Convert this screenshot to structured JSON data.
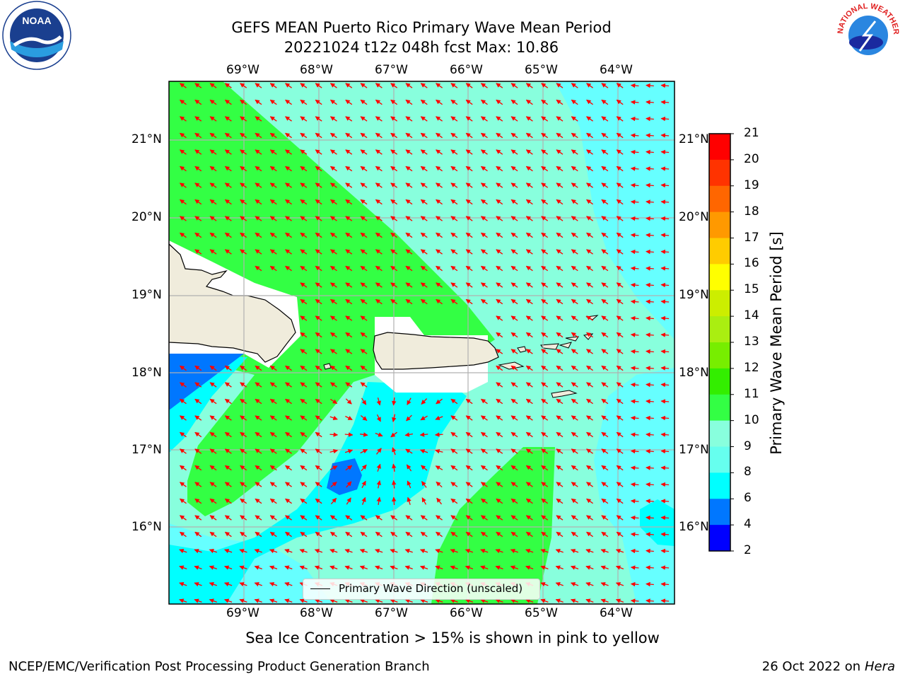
{
  "title": {
    "line1": "GEFS MEAN Puerto Rico Primary Wave Mean Period",
    "line2": "20221024 t12z 048h fcst   Max: 10.86"
  },
  "axes": {
    "lon_labels": [
      "69°W",
      "68°W",
      "67°W",
      "66°W",
      "65°W",
      "64°W"
    ],
    "lat_labels": [
      "21°N",
      "20°N",
      "19°N",
      "18°N",
      "17°N",
      "16°N"
    ]
  },
  "colorbar": {
    "label": "Primary Wave Mean Period [s]",
    "ticks": [
      "21",
      "20",
      "19",
      "18",
      "17",
      "16",
      "15",
      "14",
      "13",
      "12",
      "11",
      "10",
      "9",
      "8",
      "6",
      "4",
      "2"
    ],
    "colors": [
      "#ff0000",
      "#ff3300",
      "#ff6600",
      "#ff9900",
      "#ffcc00",
      "#ffff00",
      "#ccee00",
      "#aaee11",
      "#77ee00",
      "#33ee00",
      "#33ff44",
      "#88ffdd",
      "#66ffee",
      "#00ffff",
      "#0077ff",
      "#0000ff"
    ]
  },
  "map": {
    "land_color": "#f0ecdc",
    "arrow_color": "#ff0000",
    "field_colors": {
      "p6": "#0077ff",
      "p8": "#00ffff",
      "p9": "#66ffff",
      "p10": "#88ffdd",
      "p11": "#33ff44"
    }
  },
  "legend": {
    "label": "Primary Wave Direction (unscaled)"
  },
  "footer": {
    "note": "Sea Ice Concentration > 15% is shown in pink to yellow",
    "credit": "NCEP/EMC/Verification Post Processing Product Generation Branch",
    "date_prefix": "26 Oct 2022 on ",
    "date_machine": "Hera"
  },
  "logos": {
    "noaa": "NOAA",
    "nws": "NATIONAL WEATHER SERVICE"
  }
}
